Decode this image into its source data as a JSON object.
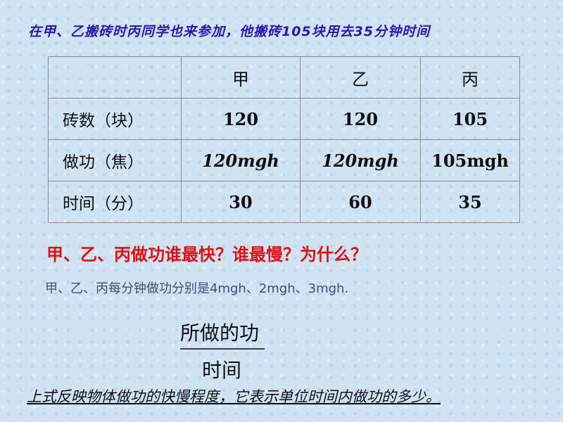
{
  "title": "在甲、乙搬砖时丙同学也来参加，他搬砖105块用去35分钟时间",
  "table": {
    "headers": [
      "",
      "甲",
      "乙",
      "丙"
    ],
    "rows": [
      {
        "label": "砖数（块）",
        "values": [
          "120",
          "120",
          "105"
        ]
      },
      {
        "label": "做功（焦）",
        "values": [
          "120mgh",
          "120mgh",
          "105mgh"
        ]
      },
      {
        "label": "时间（分）",
        "values": [
          "30",
          "60",
          "35"
        ]
      }
    ]
  },
  "question": "甲、乙、丙做功谁最快？谁最慢？为什么？",
  "answer": "甲、乙、丙每分钟做功分别是4mgh、2mgh、3mgh.",
  "formula": {
    "numerator": "所做的功",
    "denominator": "时间"
  },
  "conclusion": "上式反映物体做功的快慢程度，它表示单位时间内做功的多少。"
}
